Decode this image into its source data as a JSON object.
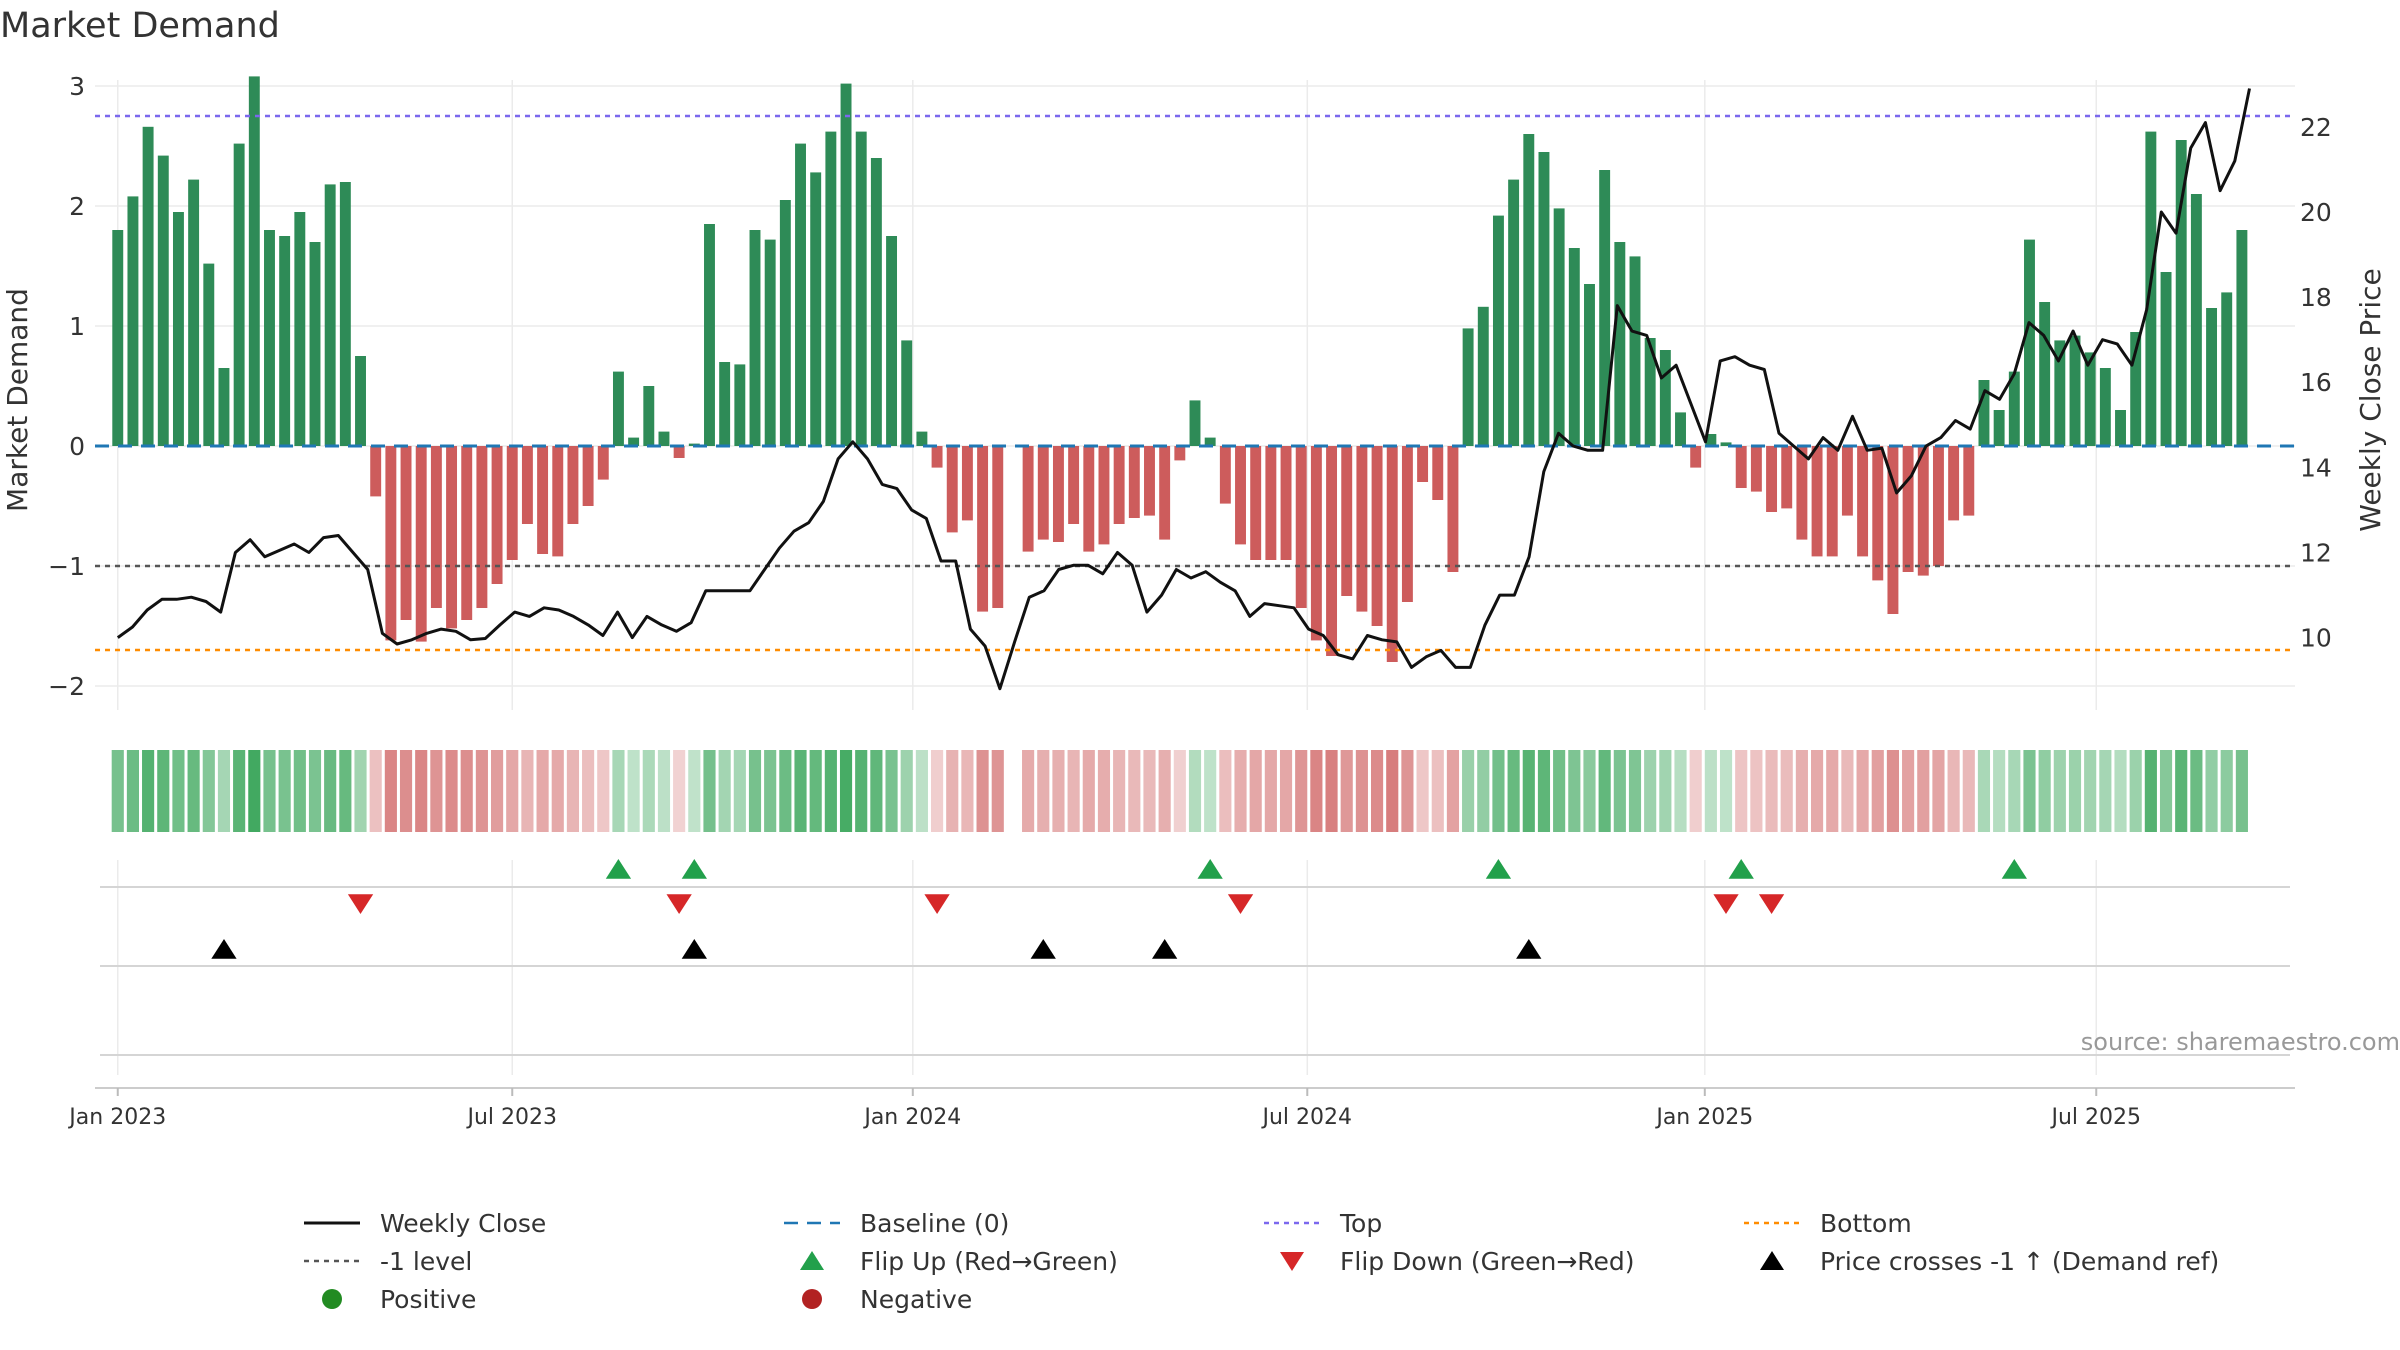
{
  "title": "Market Demand",
  "source": "source: sharemaestro.com",
  "colors": {
    "positive": "#2e8b57",
    "negative": "#cd5c5c",
    "close": "#111111",
    "baseline": "#1f77b4",
    "top": "#7b68ee",
    "bottom": "#ff8c00",
    "minus_one": "#555555",
    "flip_up": "#22a04b",
    "flip_down": "#d62728",
    "cross": "#000000",
    "grid": "#ebebeb"
  },
  "legend": [
    {
      "key": "close",
      "label": "Weekly Close",
      "symbol": "line-solid",
      "color": "#111111"
    },
    {
      "key": "baseline",
      "label": "Baseline (0)",
      "symbol": "line-dash",
      "color": "#1f77b4"
    },
    {
      "key": "top",
      "label": "Top",
      "symbol": "line-dot",
      "color": "#7b68ee"
    },
    {
      "key": "bottom",
      "label": "Bottom",
      "symbol": "line-dot",
      "color": "#ff8c00"
    },
    {
      "key": "minus_one",
      "label": "-1 level",
      "symbol": "line-dot",
      "color": "#555555"
    },
    {
      "key": "flip_up",
      "label": "Flip Up (Red→Green)",
      "symbol": "triangle-up",
      "color": "#22a04b"
    },
    {
      "key": "flip_down",
      "label": "Flip Down (Green→Red)",
      "symbol": "triangle-down",
      "color": "#d62728"
    },
    {
      "key": "cross",
      "label": "Price crosses -1 ↑ (Demand ref)",
      "symbol": "triangle-up",
      "color": "#000000"
    },
    {
      "key": "positive",
      "label": "Positive",
      "symbol": "circle",
      "color": "#228b22"
    },
    {
      "key": "negative",
      "label": "Negative",
      "symbol": "circle",
      "color": "#b22222"
    }
  ],
  "chart_data": {
    "type": "bar",
    "title": "Market Demand",
    "ylabel": "Market Demand",
    "y2label": "Weekly Close Price",
    "x_range": [
      -1.5,
      143.5
    ],
    "ylim": [
      -2.2,
      3.05
    ],
    "y2lim": [
      8.3,
      23.1
    ],
    "yticks": [
      3,
      2,
      1,
      0,
      -1,
      -2
    ],
    "y2ticks": [
      22,
      20,
      18,
      16,
      14,
      12,
      10
    ],
    "xticks": [
      {
        "label": "Jan 2023",
        "index": 0
      },
      {
        "label": "Jul 2023",
        "index": 26
      },
      {
        "label": "Jan 2024",
        "index": 52.4
      },
      {
        "label": "Jul 2024",
        "index": 78.4
      },
      {
        "label": "Jan 2025",
        "index": 104.6
      },
      {
        "label": "Jul 2025",
        "index": 130.4
      }
    ],
    "reference_lines": {
      "baseline": 0,
      "top": 2.75,
      "bottom": -1.7,
      "minus_one": -1
    },
    "demand": [
      1.8,
      2.08,
      2.66,
      2.42,
      1.95,
      2.22,
      1.52,
      0.65,
      2.52,
      3.08,
      1.8,
      1.75,
      1.95,
      1.7,
      2.18,
      2.2,
      0.75,
      -0.42,
      -1.62,
      -1.45,
      -1.63,
      -1.35,
      -1.52,
      -1.45,
      -1.35,
      -1.15,
      -0.95,
      -0.65,
      -0.9,
      -0.92,
      -0.65,
      -0.5,
      -0.28,
      0.62,
      0.07,
      0.5,
      0.12,
      -0.1,
      0.02,
      1.85,
      0.7,
      0.68,
      1.8,
      1.72,
      2.05,
      2.52,
      2.28,
      2.62,
      3.02,
      2.62,
      2.4,
      1.75,
      0.88,
      0.12,
      -0.18,
      -0.72,
      -0.62,
      -1.38,
      -1.35,
      0,
      -0.88,
      -0.78,
      -0.8,
      -0.65,
      -0.88,
      -0.82,
      -0.65,
      -0.6,
      -0.58,
      -0.78,
      -0.12,
      0.38,
      0.07,
      -0.48,
      -0.82,
      -0.95,
      -0.95,
      -0.95,
      -1.35,
      -1.62,
      -1.75,
      -1.25,
      -1.38,
      -1.5,
      -1.8,
      -1.3,
      -0.3,
      -0.45,
      -1.05,
      0.98,
      1.16,
      1.92,
      2.22,
      2.6,
      2.45,
      1.98,
      1.65,
      1.35,
      2.3,
      1.7,
      1.58,
      0.9,
      0.8,
      0.28,
      -0.18,
      0.1,
      0.03,
      -0.35,
      -0.38,
      -0.55,
      -0.52,
      -0.78,
      -0.92,
      -0.92,
      -0.58,
      -0.92,
      -1.12,
      -1.4,
      -1.05,
      -1.08,
      -1,
      -0.62,
      -0.58,
      0.55,
      0.3,
      0.62,
      1.72,
      1.2,
      0.88,
      0.92,
      0.78,
      0.65,
      0.3,
      0.95,
      2.62,
      1.45,
      2.55,
      2.1,
      1.15,
      1.28,
      1.8
    ],
    "close": [
      10,
      10.25,
      10.65,
      10.9,
      10.9,
      10.95,
      10.85,
      10.6,
      12,
      12.3,
      11.9,
      12.05,
      12.2,
      12,
      12.35,
      12.4,
      12,
      11.6,
      10.1,
      9.85,
      9.95,
      10.1,
      10.2,
      10.15,
      9.95,
      9.98,
      10.3,
      10.6,
      10.5,
      10.7,
      10.65,
      10.5,
      10.3,
      10.05,
      10.6,
      10,
      10.5,
      10.3,
      10.15,
      10.35,
      11.1,
      11.1,
      11.1,
      11.1,
      11.6,
      12.1,
      12.5,
      12.7,
      13.2,
      14.2,
      14.6,
      14.2,
      13.6,
      13.5,
      13,
      12.8,
      11.8,
      11.8,
      10.2,
      9.8,
      8.8,
      9.9,
      10.95,
      11.1,
      11.6,
      11.7,
      11.7,
      11.5,
      12,
      11.7,
      10.6,
      11,
      11.6,
      11.4,
      11.55,
      11.3,
      11.1,
      10.5,
      10.8,
      10.75,
      10.7,
      10.2,
      10.05,
      9.6,
      9.5,
      10.05,
      9.95,
      9.9,
      9.3,
      9.55,
      9.7,
      9.3,
      9.3,
      10.3,
      11,
      11,
      11.9,
      13.9,
      14.8,
      14.5,
      14.4,
      14.4,
      17.8,
      17.2,
      17.1,
      16.1,
      16.4,
      15.5,
      14.6,
      16.5,
      16.6,
      16.4,
      16.3,
      14.8,
      14.5,
      14.2,
      14.7,
      14.4,
      15.2,
      14.4,
      14.45,
      13.4,
      13.8,
      14.5,
      14.7,
      15.1,
      14.9,
      15.8,
      15.6,
      16.2,
      17.4,
      17.1,
      16.5,
      17.2,
      16.4,
      17,
      16.9,
      16.4,
      17.7,
      20,
      19.5,
      21.5,
      22.1,
      20.5,
      21.2,
      22.9
    ],
    "band_gaps": [
      59
    ],
    "flip_up": [
      33,
      38,
      72,
      91,
      107,
      125
    ],
    "flip_down": [
      16,
      37,
      54,
      74,
      106,
      109
    ],
    "cross_up": [
      7,
      38,
      61,
      69,
      93
    ]
  }
}
